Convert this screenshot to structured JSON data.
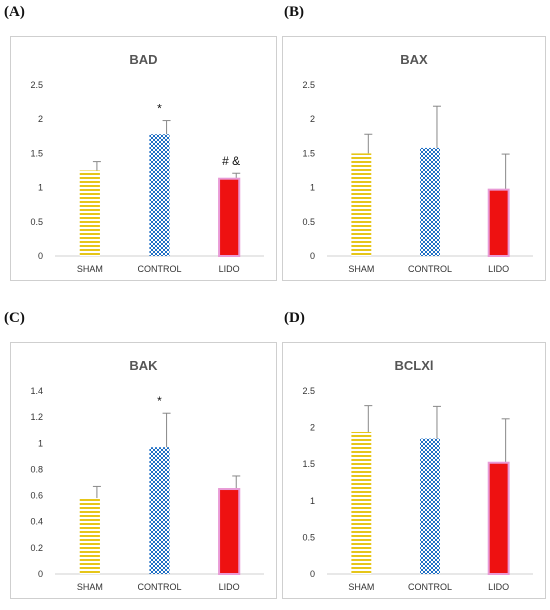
{
  "panels": [
    {
      "letter": "(A)"
    },
    {
      "letter": "(B)"
    },
    {
      "letter": "(C)"
    },
    {
      "letter": "(D)"
    }
  ],
  "colors": {
    "sham": "#e6c619",
    "control": "#1f6fc4",
    "lido": "#ee1111",
    "lido_border": "#e89ad6",
    "error_bar": "#888888"
  },
  "chart_data": [
    {
      "type": "bar",
      "title": "BAD",
      "categories": [
        "SHAM",
        "CONTROL",
        "LIDO"
      ],
      "values": [
        1.25,
        1.78,
        1.13
      ],
      "errors": [
        0.13,
        0.2,
        0.08
      ],
      "ylim": [
        0,
        2.5
      ],
      "yticks": [
        0,
        0.5,
        1,
        1.5,
        2,
        2.5
      ],
      "ytick_labels": [
        "0",
        "0.5",
        "1",
        "1.5",
        "2",
        "2.5"
      ],
      "annotations": [
        "",
        "*",
        "# &"
      ],
      "xlabel": "",
      "ylabel": ""
    },
    {
      "type": "bar",
      "title": "BAX",
      "categories": [
        "SHAM",
        "CONTROL",
        "LIDO"
      ],
      "values": [
        1.5,
        1.58,
        0.97
      ],
      "errors": [
        0.28,
        0.61,
        0.52
      ],
      "ylim": [
        0,
        2.5
      ],
      "yticks": [
        0,
        0.5,
        1,
        1.5,
        2,
        2.5
      ],
      "ytick_labels": [
        "0",
        "0.5",
        "1",
        "1.5",
        "2",
        "2.5"
      ],
      "annotations": [
        "",
        "",
        ""
      ],
      "xlabel": "",
      "ylabel": ""
    },
    {
      "type": "bar",
      "title": "BAK",
      "categories": [
        "SHAM",
        "CONTROL",
        "LIDO"
      ],
      "values": [
        0.58,
        0.97,
        0.65
      ],
      "errors": [
        0.09,
        0.26,
        0.1
      ],
      "ylim": [
        0,
        1.4
      ],
      "yticks": [
        0,
        0.2,
        0.4,
        0.6,
        0.8,
        1,
        1.2,
        1.4
      ],
      "ytick_labels": [
        "0",
        "0.2",
        "0.4",
        "0.6",
        "0.8",
        "1",
        "1.2",
        "1.4"
      ],
      "annotations": [
        "",
        "*",
        ""
      ],
      "xlabel": "",
      "ylabel": ""
    },
    {
      "type": "bar",
      "title": "BCLXl",
      "categories": [
        "SHAM",
        "CONTROL",
        "LIDO"
      ],
      "values": [
        1.94,
        1.85,
        1.52
      ],
      "errors": [
        0.36,
        0.44,
        0.6
      ],
      "ylim": [
        0,
        2.5
      ],
      "yticks": [
        0,
        0.5,
        1,
        1.5,
        2,
        2.5
      ],
      "ytick_labels": [
        "0",
        "0.5",
        "1",
        "1.5",
        "2",
        "2.5"
      ],
      "annotations": [
        "",
        "",
        ""
      ],
      "xlabel": "",
      "ylabel": ""
    }
  ]
}
